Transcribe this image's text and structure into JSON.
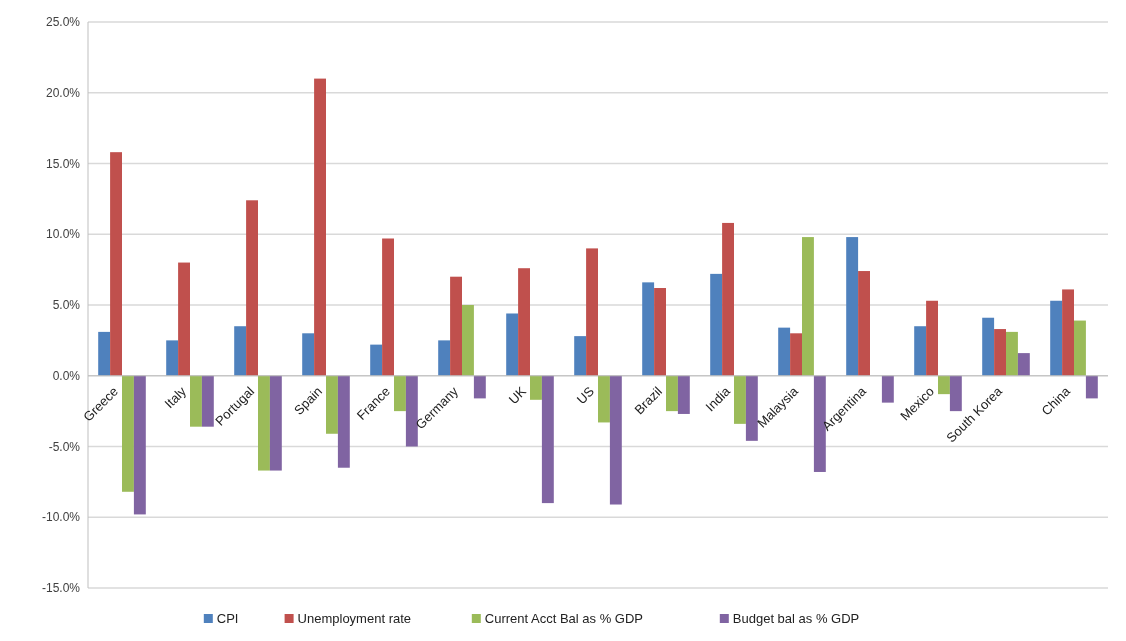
{
  "chart_data": {
    "type": "bar",
    "categories": [
      "Greece",
      "Italy",
      "Portugal",
      "Spain",
      "France",
      "Germany",
      "UK",
      "US",
      "Brazil",
      "India",
      "Malaysia",
      "Argentina",
      "Mexico",
      "South Korea",
      "China"
    ],
    "series": [
      {
        "name": "CPI",
        "color": "#4f81bd",
        "values": [
          3.1,
          2.5,
          3.5,
          3.0,
          2.2,
          2.5,
          4.4,
          2.8,
          6.6,
          7.2,
          3.4,
          9.8,
          3.5,
          4.1,
          5.3
        ]
      },
      {
        "name": "Unemployment rate",
        "color": "#c0504d",
        "values": [
          15.8,
          8.0,
          12.4,
          21.0,
          9.7,
          7.0,
          7.6,
          9.0,
          6.2,
          10.8,
          3.0,
          7.4,
          5.3,
          3.3,
          6.1
        ]
      },
      {
        "name": "Current Acct Bal as % GDP",
        "color": "#9bbb59",
        "values": [
          -8.2,
          -3.6,
          -6.7,
          -4.1,
          -2.5,
          5.0,
          -1.7,
          -3.3,
          -2.5,
          -3.4,
          9.8,
          null,
          -1.3,
          3.1,
          3.9
        ]
      },
      {
        "name": "Budget bal as % GDP",
        "color": "#8064a2",
        "values": [
          -9.8,
          -3.6,
          -6.7,
          -6.5,
          -5.0,
          -1.6,
          -9.0,
          -9.1,
          -2.7,
          -4.6,
          -6.8,
          -1.9,
          -2.5,
          1.6,
          -1.6
        ]
      }
    ],
    "ylim": [
      -15,
      25
    ],
    "yticks": [
      {
        "value": -15,
        "label": "-15.0%"
      },
      {
        "value": -10,
        "label": "-10.0%"
      },
      {
        "value": -5,
        "label": "-5.0%"
      },
      {
        "value": 0,
        "label": "0.0%"
      },
      {
        "value": 5,
        "label": "5.0%"
      },
      {
        "value": 10,
        "label": "10.0%"
      },
      {
        "value": 15,
        "label": "15.0%"
      },
      {
        "value": 20,
        "label": "20.0%"
      },
      {
        "value": 25,
        "label": "25.0%"
      }
    ],
    "grid": "y",
    "legend": "bottom"
  }
}
